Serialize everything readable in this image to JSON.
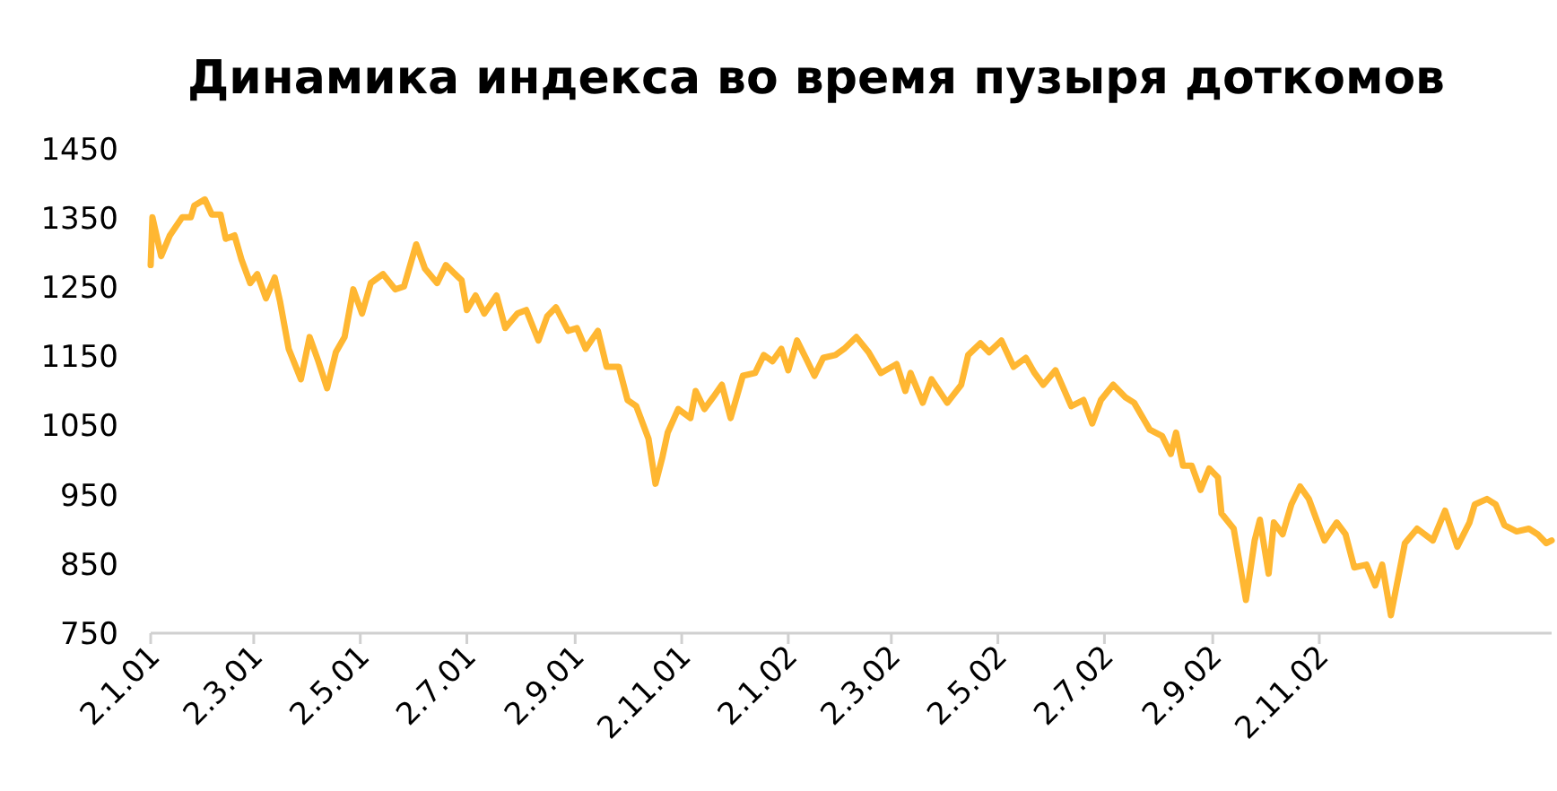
{
  "chart_data": {
    "type": "line",
    "title": "Динамика индекса во время пузыря доткомов",
    "x": [
      "2001-01-02",
      "2001-01-03",
      "2001-01-08",
      "2001-01-13",
      "2001-01-20",
      "2001-01-25",
      "2001-01-27",
      "2001-02-02",
      "2001-02-06",
      "2001-02-11",
      "2001-02-14",
      "2001-02-19",
      "2001-02-23",
      "2001-02-28",
      "2001-03-04",
      "2001-03-09",
      "2001-03-14",
      "2001-03-17",
      "2001-03-22",
      "2001-03-29",
      "2001-04-03",
      "2001-04-08",
      "2001-04-13",
      "2001-04-18",
      "2001-04-23",
      "2001-04-28",
      "2001-05-03",
      "2001-05-08",
      "2001-05-15",
      "2001-05-22",
      "2001-05-27",
      "2001-06-03",
      "2001-06-08",
      "2001-06-15",
      "2001-06-20",
      "2001-06-29",
      "2001-07-02",
      "2001-07-07",
      "2001-07-12",
      "2001-07-19",
      "2001-07-24",
      "2001-07-31",
      "2001-08-05",
      "2001-08-12",
      "2001-08-17",
      "2001-08-22",
      "2001-08-29",
      "2001-09-03",
      "2001-09-08",
      "2001-09-15",
      "2001-09-20",
      "2001-09-27",
      "2001-10-02",
      "2001-10-07",
      "2001-10-14",
      "2001-10-18",
      "2001-10-22",
      "2001-10-25",
      "2001-10-31",
      "2001-11-07",
      "2001-11-10",
      "2001-11-15",
      "2001-11-20",
      "2001-11-25",
      "2001-11-30",
      "2001-12-07",
      "2001-12-14",
      "2001-12-19",
      "2001-12-24",
      "2001-12-29",
      "2002-01-02",
      "2002-01-07",
      "2002-01-12",
      "2002-01-17",
      "2002-01-22",
      "2002-01-29",
      "2002-02-03",
      "2002-02-10",
      "2002-02-17",
      "2002-02-24",
      "2002-03-05",
      "2002-03-10",
      "2002-03-13",
      "2002-03-20",
      "2002-03-25",
      "2002-04-03",
      "2002-04-11",
      "2002-04-15",
      "2002-04-22",
      "2002-04-27",
      "2002-05-04",
      "2002-05-11",
      "2002-05-18",
      "2002-05-23",
      "2002-05-28",
      "2002-06-04",
      "2002-06-13",
      "2002-06-20",
      "2002-06-25",
      "2002-06-30",
      "2002-07-07",
      "2002-07-14",
      "2002-07-19",
      "2002-07-28",
      "2002-08-04",
      "2002-08-09",
      "2002-08-12",
      "2002-08-16",
      "2002-08-21",
      "2002-08-26",
      "2002-08-31",
      "2002-09-05",
      "2002-09-07",
      "2002-09-14",
      "2002-09-21",
      "2002-09-26",
      "2002-09-29",
      "2002-10-04",
      "2002-10-07",
      "2002-10-12",
      "2002-10-17",
      "2002-10-22",
      "2002-10-27",
      "2002-11-01",
      "2002-11-05",
      "2002-11-12",
      "2002-11-17",
      "2002-11-22",
      "2002-11-29",
      "2002-12-04",
      "2002-12-08",
      "2002-12-13",
      "2002-12-18",
      "2002-12-21",
      "2002-12-28",
      "2003-01-06",
      "2003-01-13",
      "2003-01-20",
      "2003-01-27",
      "2003-01-30",
      "2003-02-06",
      "2003-02-11",
      "2003-02-16",
      "2003-02-23",
      "2003-03-02",
      "2003-03-07",
      "2003-03-12",
      "2003-03-15"
    ],
    "series": [
      {
        "color": "#ffb732",
        "values": [
          1282,
          1351,
          1295,
          1325,
          1351,
          1351,
          1368,
          1377,
          1355,
          1355,
          1320,
          1325,
          1290,
          1256,
          1269,
          1234,
          1264,
          1230,
          1161,
          1117,
          1178,
          1143,
          1104,
          1156,
          1178,
          1247,
          1212,
          1256,
          1269,
          1247,
          1251,
          1312,
          1277,
          1256,
          1282,
          1260,
          1217,
          1238,
          1212,
          1238,
          1191,
          1212,
          1217,
          1173,
          1208,
          1221,
          1187,
          1191,
          1161,
          1187,
          1135,
          1135,
          1087,
          1078,
          1031,
          966,
          1005,
          1040,
          1074,
          1061,
          1100,
          1074,
          1091,
          1109,
          1061,
          1122,
          1126,
          1152,
          1143,
          1161,
          1130,
          1173,
          1148,
          1122,
          1148,
          1152,
          1161,
          1178,
          1156,
          1126,
          1139,
          1100,
          1126,
          1083,
          1117,
          1083,
          1109,
          1152,
          1169,
          1156,
          1173,
          1135,
          1148,
          1126,
          1109,
          1130,
          1078,
          1087,
          1053,
          1087,
          1109,
          1091,
          1083,
          1044,
          1035,
          1009,
          1040,
          992,
          992,
          957,
          988,
          975,
          923,
          901,
          798,
          884,
          914,
          836,
          910,
          893,
          936,
          962,
          944,
          910,
          884,
          910,
          893,
          845,
          849,
          819,
          849,
          776,
          841,
          880,
          901,
          884,
          927,
          875,
          910,
          936,
          944,
          936,
          906,
          897,
          901,
          893,
          880,
          884
        ]
      }
    ],
    "xlim": [
      "2001-01-02",
      "2003-03-15"
    ],
    "xticks": [
      {
        "value": "2001-01-02",
        "label": "2.1.01"
      },
      {
        "value": "2001-03-02",
        "label": "2.3.01"
      },
      {
        "value": "2001-05-02",
        "label": "2.5.01"
      },
      {
        "value": "2001-07-02",
        "label": "2.7.01"
      },
      {
        "value": "2001-09-02",
        "label": "2.9.01"
      },
      {
        "value": "2001-11-02",
        "label": "2.11.01"
      },
      {
        "value": "2002-01-02",
        "label": "2.1.02"
      },
      {
        "value": "2002-03-02",
        "label": "2.3.02"
      },
      {
        "value": "2002-05-02",
        "label": "2.5.02"
      },
      {
        "value": "2002-07-02",
        "label": "2.7.02"
      },
      {
        "value": "2002-09-02",
        "label": "2.9.02"
      },
      {
        "value": "2002-11-02",
        "label": "2.11.02"
      }
    ],
    "ylim": [
      750,
      1450
    ],
    "yticks": [
      750,
      850,
      950,
      1050,
      1150,
      1250,
      1350,
      1450
    ],
    "grid": false,
    "marker": "none",
    "line_style": "solid"
  }
}
